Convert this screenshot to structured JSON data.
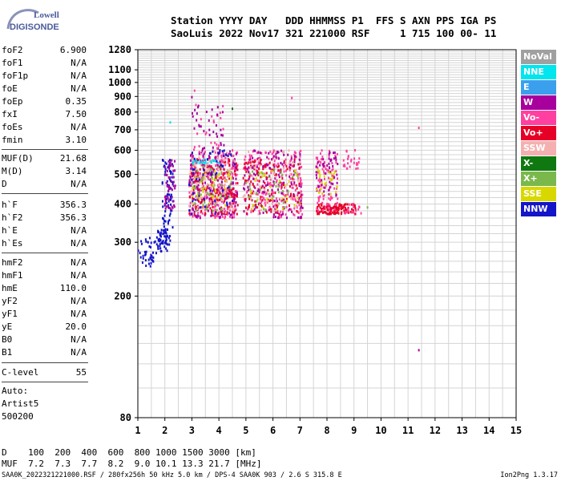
{
  "logo": {
    "line1": "Lowell",
    "line2": "DIGISONDE"
  },
  "header": {
    "line1": "Station YYYY DAY   DDD HHMMSS P1  FFS S AXN PPS IGA PS",
    "line2": "SaoLuis 2022 Nov17 321 221000 RSF     1 715 100 00- 11"
  },
  "params_group1": [
    {
      "key": "foF2",
      "value": "6.900"
    },
    {
      "key": "foF1",
      "value": "N/A"
    },
    {
      "key": "foF1p",
      "value": "N/A"
    },
    {
      "key": "foE",
      "value": "N/A"
    },
    {
      "key": "foEp",
      "value": "0.35"
    },
    {
      "key": "fxI",
      "value": "7.50"
    },
    {
      "key": "foEs",
      "value": "N/A"
    },
    {
      "key": "fmin",
      "value": "3.10"
    }
  ],
  "params_group2": [
    {
      "key": "MUF(D)",
      "value": "21.68"
    },
    {
      "key": "M(D)",
      "value": "3.14"
    },
    {
      "key": "D",
      "value": "N/A"
    }
  ],
  "params_group3": [
    {
      "key": "h`F",
      "value": "356.3"
    },
    {
      "key": "h`F2",
      "value": "356.3"
    },
    {
      "key": "h`E",
      "value": "N/A"
    },
    {
      "key": "h`Es",
      "value": "N/A"
    }
  ],
  "params_group4": [
    {
      "key": "hmF2",
      "value": "N/A"
    },
    {
      "key": "hmF1",
      "value": "N/A"
    },
    {
      "key": "hmE",
      "value": "110.0"
    },
    {
      "key": "yF2",
      "value": "N/A"
    },
    {
      "key": "yF1",
      "value": "N/A"
    },
    {
      "key": "yE",
      "value": "20.0"
    },
    {
      "key": "B0",
      "value": "N/A"
    },
    {
      "key": "B1",
      "value": "N/A"
    }
  ],
  "params_group5": [
    {
      "key": "C-level",
      "value": "55"
    }
  ],
  "autoscaling": [
    "Auto:",
    "Artist5",
    "500200"
  ],
  "legend": [
    {
      "label": "NoVal",
      "color": "#a0a0a0"
    },
    {
      "label": "NNE",
      "color": "#00e5ee"
    },
    {
      "label": "E",
      "color": "#3aa0ee"
    },
    {
      "label": "W",
      "color": "#a8009c"
    },
    {
      "label": "Vo-",
      "color": "#ff40a0"
    },
    {
      "label": "Vo+",
      "color": "#e60026"
    },
    {
      "label": "SSW",
      "color": "#f4b0b0"
    },
    {
      "label": "X-",
      "color": "#107810"
    },
    {
      "label": "X+",
      "color": "#7ab84c"
    },
    {
      "label": "SSE",
      "color": "#d8d800"
    },
    {
      "label": "NNW",
      "color": "#1414c8"
    }
  ],
  "muf_table": {
    "d_line": "D    100  200  400  600  800 1000 1500 3000 [km]",
    "muf_line": "MUF  7.2  7.3  7.7  8.2  9.0 10.1 13.3 21.7 [MHz]"
  },
  "footer": {
    "left": "SAA0K_2022321221000.RSF / 280fx256h 50 kHz 5.0 km / DPS-4 SAA0K 903 / 2.6 S 315.8 E",
    "right": "Ion2Png 1.3.17"
  },
  "chart_data": {
    "type": "scatter",
    "xlim": [
      1,
      15
    ],
    "ylim": [
      80,
      1280
    ],
    "xticks": [
      "1",
      "2",
      "3",
      "4",
      "5",
      "6",
      "7",
      "8",
      "9",
      "10",
      "11",
      "12",
      "13",
      "14",
      "15"
    ],
    "yticks": [
      "80",
      "200",
      "300",
      "400",
      "500",
      "600",
      "700",
      "800",
      "900",
      "1000",
      "1100",
      "1280"
    ],
    "ytick_values": [
      80,
      200,
      300,
      400,
      500,
      600,
      700,
      800,
      900,
      1000,
      1100,
      1280
    ],
    "xlabel": "",
    "ylabel": "",
    "grid": true,
    "y_scale": "log",
    "legend_position": "right",
    "clusters": [
      {
        "x": [
          1.0,
          1.7
        ],
        "y": [
          250,
          310
        ],
        "color": "#1414c8",
        "n": 40
      },
      {
        "x": [
          1.7,
          2.2
        ],
        "y": [
          280,
          330
        ],
        "color": "#1414c8",
        "n": 60
      },
      {
        "x": [
          1.9,
          2.3
        ],
        "y": [
          330,
          560
        ],
        "color": "#1414c8",
        "n": 70
      },
      {
        "x": [
          2.0,
          2.4
        ],
        "y": [
          380,
          560
        ],
        "color": "#a8009c",
        "n": 50
      },
      {
        "x": [
          2.9,
          4.7
        ],
        "y": [
          360,
          600
        ],
        "color": "#ff40a0",
        "n": 260
      },
      {
        "x": [
          2.9,
          4.7
        ],
        "y": [
          360,
          600
        ],
        "color": "#a8009c",
        "n": 200
      },
      {
        "x": [
          2.9,
          4.7
        ],
        "y": [
          370,
          560
        ],
        "color": "#e60026",
        "n": 150
      },
      {
        "x": [
          3.0,
          4.5
        ],
        "y": [
          380,
          540
        ],
        "color": "#7ab84c",
        "n": 60
      },
      {
        "x": [
          3.0,
          4.5
        ],
        "y": [
          390,
          520
        ],
        "color": "#d8d800",
        "n": 45
      },
      {
        "x": [
          3.0,
          4.0
        ],
        "y": [
          540,
          560
        ],
        "color": "#00e5ee",
        "n": 30
      },
      {
        "x": [
          2.9,
          4.6
        ],
        "y": [
          370,
          600
        ],
        "color": "#f4b0b0",
        "n": 80
      },
      {
        "x": [
          2.9,
          4.6
        ],
        "y": [
          370,
          600
        ],
        "color": "#1414c8",
        "n": 50
      },
      {
        "x": [
          3.0,
          4.2
        ],
        "y": [
          600,
          850
        ],
        "color": "#a8009c",
        "n": 35
      },
      {
        "x": [
          3.0,
          4.2
        ],
        "y": [
          600,
          850
        ],
        "color": "#ff40a0",
        "n": 20
      },
      {
        "x": [
          4.9,
          7.1
        ],
        "y": [
          360,
          600
        ],
        "color": "#ff40a0",
        "n": 200
      },
      {
        "x": [
          4.9,
          7.1
        ],
        "y": [
          360,
          600
        ],
        "color": "#a8009c",
        "n": 150
      },
      {
        "x": [
          4.9,
          7.1
        ],
        "y": [
          370,
          560
        ],
        "color": "#e60026",
        "n": 120
      },
      {
        "x": [
          5.0,
          7.0
        ],
        "y": [
          380,
          520
        ],
        "color": "#7ab84c",
        "n": 40
      },
      {
        "x": [
          5.0,
          7.0
        ],
        "y": [
          380,
          520
        ],
        "color": "#d8d800",
        "n": 30
      },
      {
        "x": [
          4.9,
          7.0
        ],
        "y": [
          370,
          600
        ],
        "color": "#f4b0b0",
        "n": 50
      },
      {
        "x": [
          7.6,
          8.4
        ],
        "y": [
          370,
          400
        ],
        "color": "#e60026",
        "n": 80
      },
      {
        "x": [
          8.4,
          9.1
        ],
        "y": [
          370,
          400
        ],
        "color": "#e60026",
        "n": 50
      },
      {
        "x": [
          7.6,
          8.4
        ],
        "y": [
          380,
          600
        ],
        "color": "#ff40a0",
        "n": 90
      },
      {
        "x": [
          7.6,
          8.4
        ],
        "y": [
          420,
          600
        ],
        "color": "#a8009c",
        "n": 50
      },
      {
        "x": [
          7.6,
          8.4
        ],
        "y": [
          430,
          520
        ],
        "color": "#d8d800",
        "n": 25
      },
      {
        "x": [
          8.6,
          9.2
        ],
        "y": [
          520,
          600
        ],
        "color": "#ff40a0",
        "n": 25
      },
      {
        "x": [
          8.6,
          9.3
        ],
        "y": [
          370,
          400
        ],
        "color": "#ff40a0",
        "n": 15
      }
    ],
    "isolated_points": [
      {
        "x": 3.1,
        "y": 940,
        "color": "#ff40a0"
      },
      {
        "x": 3.0,
        "y": 895,
        "color": "#a8009c"
      },
      {
        "x": 6.7,
        "y": 890,
        "color": "#ff40a0"
      },
      {
        "x": 11.4,
        "y": 710,
        "color": "#ff40a0"
      },
      {
        "x": 11.4,
        "y": 133,
        "color": "#a8009c"
      },
      {
        "x": 2.2,
        "y": 740,
        "color": "#00e5ee"
      },
      {
        "x": 4.5,
        "y": 820,
        "color": "#107810"
      },
      {
        "x": 9.5,
        "y": 390,
        "color": "#7ab84c"
      }
    ]
  }
}
